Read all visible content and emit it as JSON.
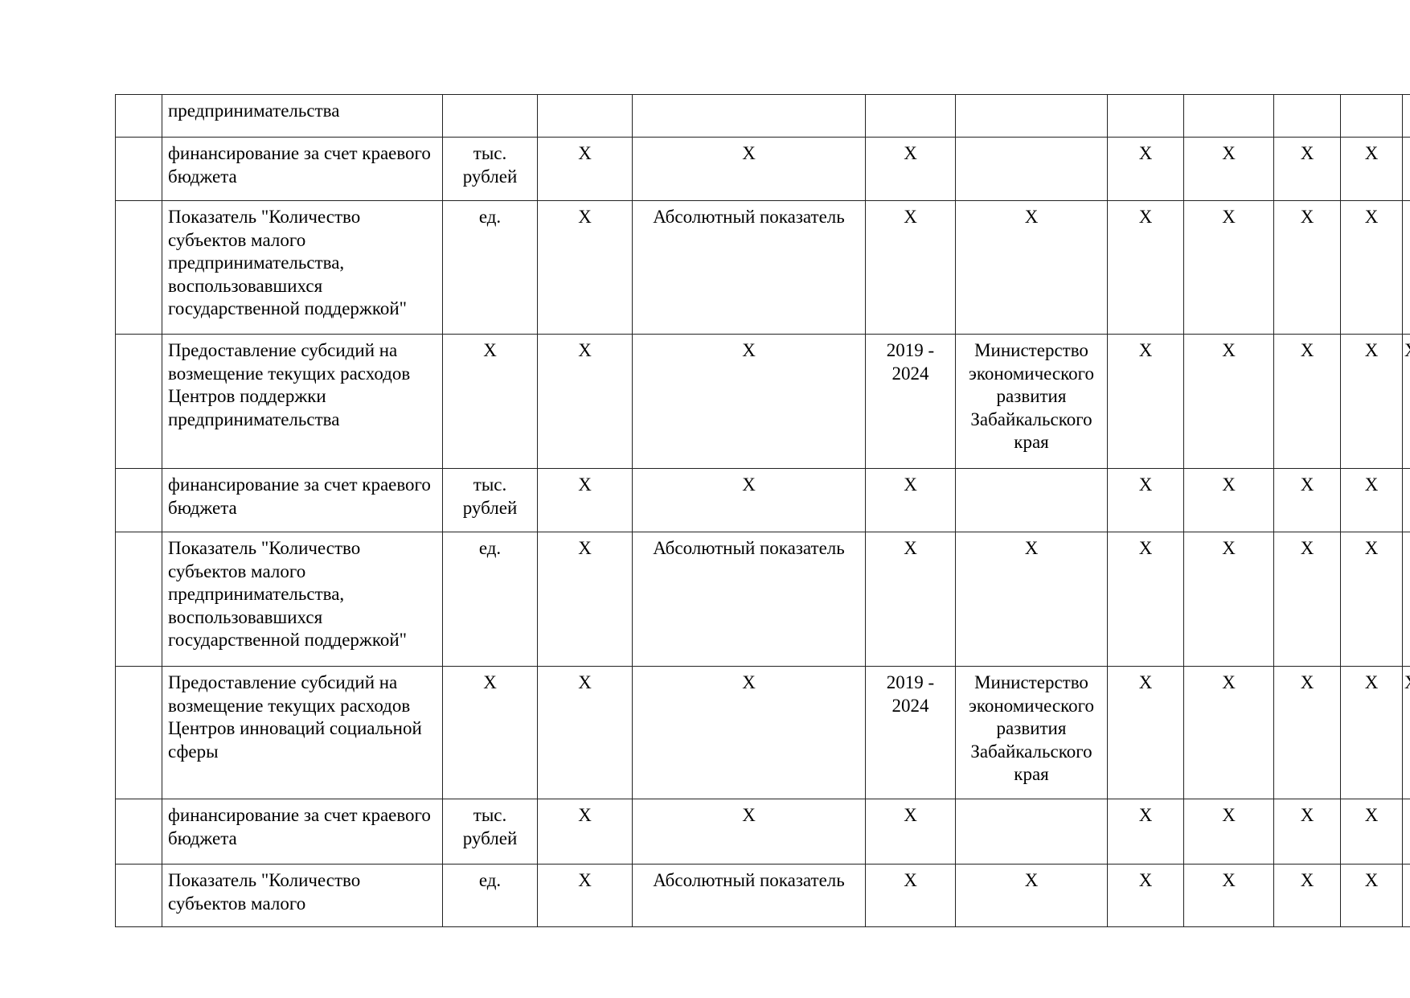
{
  "table": {
    "rows": [
      {
        "cells": [
          "",
          "предпринимательства",
          "",
          "",
          "",
          "",
          "",
          "",
          "",
          "",
          "",
          ""
        ]
      },
      {
        "cells": [
          "",
          "финансирование за счет краевого бюджета",
          "тыс. рублей",
          "X",
          "X",
          "X",
          "",
          "X",
          "X",
          "X",
          "X",
          ""
        ]
      },
      {
        "cells": [
          "",
          "Показатель \"Количество субъектов малого предпринимательства, воспользовавшихся государственной поддержкой\"",
          "ед.",
          "X",
          "Абсолютный показатель",
          "X",
          "X",
          "X",
          "X",
          "X",
          "X",
          ""
        ]
      },
      {
        "cells": [
          "",
          "Предоставление субсидий на возмещение текущих расходов Центров поддержки предпринимательства",
          "X",
          "X",
          "X",
          "2019 - 2024",
          "Министерство экономического развития Забайкальского края",
          "X",
          "X",
          "X",
          "X",
          "X"
        ]
      },
      {
        "cells": [
          "",
          "финансирование за счет краевого бюджета",
          "тыс. рублей",
          "X",
          "X",
          "X",
          "",
          "X",
          "X",
          "X",
          "X",
          ""
        ]
      },
      {
        "cells": [
          "",
          "Показатель \"Количество субъектов малого предпринимательства, воспользовавшихся государственной поддержкой\"",
          "ед.",
          "X",
          "Абсолютный показатель",
          "X",
          "X",
          "X",
          "X",
          "X",
          "X",
          ""
        ]
      },
      {
        "cells": [
          "",
          "Предоставление субсидий на возмещение текущих расходов Центров инноваций социальной сферы",
          "X",
          "X",
          "X",
          "2019 - 2024",
          "Министерство экономического развития Забайкальского края",
          "X",
          "X",
          "X",
          "X",
          "X"
        ]
      },
      {
        "cells": [
          "",
          "финансирование за счет краевого бюджета",
          "тыс. рублей",
          "X",
          "X",
          "X",
          "",
          "X",
          "X",
          "X",
          "X",
          ""
        ]
      },
      {
        "cells": [
          "",
          "Показатель \"Количество субъектов малого",
          "ед.",
          "X",
          "Абсолютный показатель",
          "X",
          "X",
          "X",
          "X",
          "X",
          "X",
          ""
        ]
      }
    ]
  }
}
